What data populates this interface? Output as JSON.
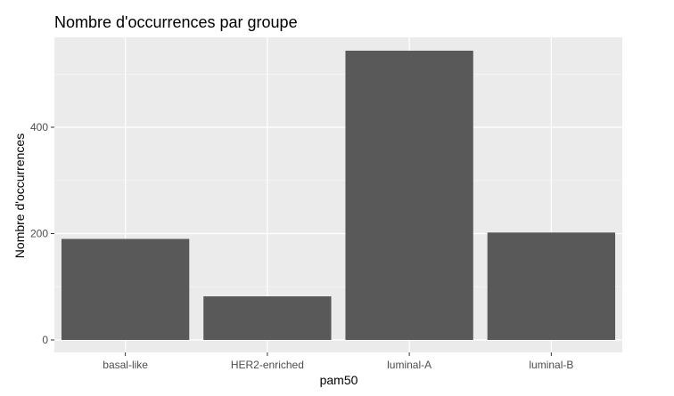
{
  "chart_data": {
    "type": "bar",
    "title": "Nombre d'occurrences par groupe",
    "xlabel": "pam50",
    "ylabel": "Nombre d'occurrences",
    "categories": [
      "basal-like",
      "HER2-enriched",
      "luminal-A",
      "luminal-B"
    ],
    "values": [
      190,
      82,
      544,
      202
    ],
    "ylim": [
      0,
      570
    ],
    "yticks": [
      0,
      200,
      400
    ],
    "grid": true,
    "colors": {
      "bar": "#595959",
      "panel": "#ebebeb",
      "grid_major": "#ffffff",
      "grid_minor": "#f5f5f5"
    }
  }
}
